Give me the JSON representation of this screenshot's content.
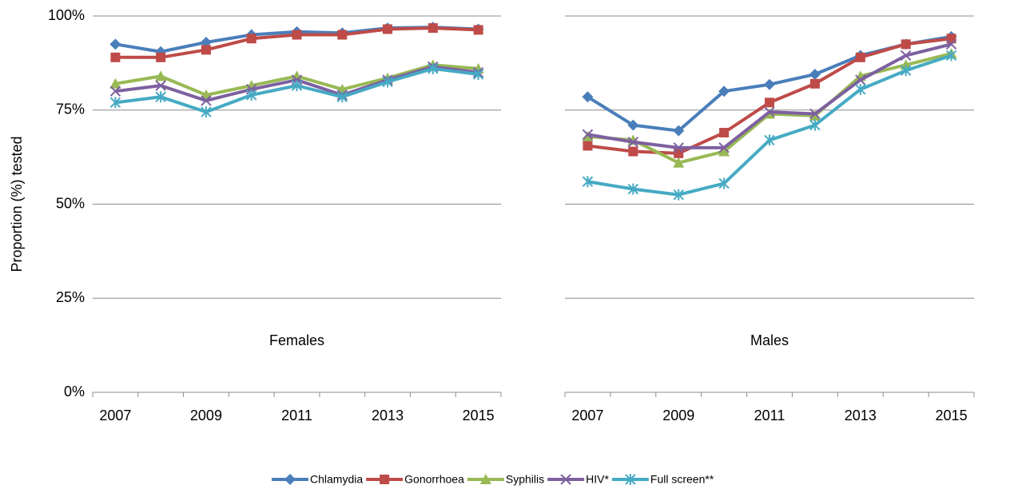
{
  "chart_data": [
    {
      "type": "line",
      "annotation": "Females",
      "ylabel": "Proportion (%) tested",
      "categories": [
        "2007",
        null,
        "2009",
        null,
        "2011",
        null,
        "2013",
        null,
        "2015"
      ],
      "ylim": [
        0,
        100
      ],
      "yticks": [
        {
          "value": 0,
          "label": "0%"
        },
        {
          "value": 25,
          "label": "25%"
        },
        {
          "value": 50,
          "label": "50%"
        },
        {
          "value": 75,
          "label": "75%"
        },
        {
          "value": 100,
          "label": "100%"
        }
      ],
      "grid": true,
      "series": [
        {
          "name": "Chlamydia",
          "color": "#4a7ebb",
          "values": [
            92.5,
            90.5,
            93,
            95,
            95.8,
            95.5,
            96.8,
            97,
            96.5
          ]
        },
        {
          "name": "Gonorrhoea",
          "color": "#be4b48",
          "values": [
            89,
            89,
            91,
            94,
            95,
            95,
            96.5,
            96.8,
            96.3
          ]
        },
        {
          "name": "Syphilis",
          "color": "#98b954",
          "values": [
            82,
            84,
            79,
            81.5,
            84,
            80.5,
            83.5,
            87,
            86
          ]
        },
        {
          "name": "HIV*",
          "color": "#7d60a0",
          "values": [
            80,
            81.5,
            77.5,
            80.5,
            83,
            79,
            83,
            86.5,
            85
          ]
        },
        {
          "name": "Full screen**",
          "color": "#46aac4",
          "values": [
            77,
            78.5,
            74.5,
            79,
            81.5,
            78.5,
            82.5,
            86,
            84.5
          ]
        }
      ]
    },
    {
      "type": "line",
      "annotation": "Males",
      "categories": [
        "2007",
        null,
        "2009",
        null,
        "2011",
        null,
        "2013",
        null,
        "2015"
      ],
      "ylim": [
        0,
        100
      ],
      "yticks": [
        0,
        25,
        50,
        75,
        100
      ],
      "grid": true,
      "series": [
        {
          "color": "#4a7ebb",
          "values": [
            78.5,
            71,
            69.5,
            80,
            81.8,
            84.5,
            89.5,
            92.5,
            94.5
          ]
        },
        {
          "color": "#be4b48",
          "values": [
            65.5,
            64,
            63.5,
            69,
            77,
            82,
            89,
            92.5,
            94
          ]
        },
        {
          "color": "#98b954",
          "values": [
            68,
            67,
            61,
            64,
            74,
            73.5,
            84,
            87,
            90
          ]
        },
        {
          "color": "#7d60a0",
          "values": [
            68.5,
            66.5,
            65,
            65,
            74.5,
            74,
            83,
            89.5,
            92.5
          ]
        },
        {
          "color": "#46aac4",
          "values": [
            56,
            54,
            52.5,
            55.5,
            67,
            71,
            80.5,
            85.5,
            89.5
          ]
        }
      ]
    }
  ]
}
